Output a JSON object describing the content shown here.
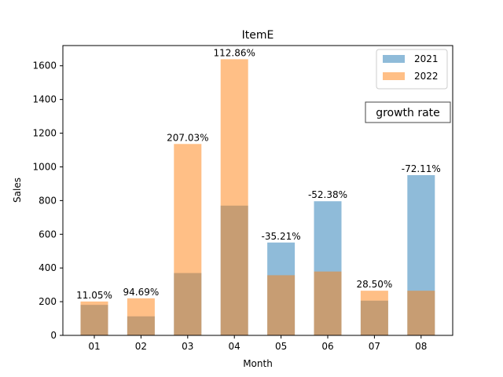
{
  "chart_data": {
    "type": "bar",
    "title": "ItemE",
    "xlabel": "Month",
    "ylabel": "Sales",
    "categories": [
      "01",
      "02",
      "03",
      "04",
      "05",
      "06",
      "07",
      "08"
    ],
    "series": [
      {
        "name": "2021",
        "color": "#1f77b4",
        "alpha": 0.5,
        "values": [
          181,
          113,
          370,
          770,
          551,
          796,
          206,
          951
        ]
      },
      {
        "name": "2022",
        "color": "#ff7f0e",
        "alpha": 0.5,
        "values": [
          201,
          220,
          1136,
          1639,
          357,
          379,
          265,
          265
        ]
      }
    ],
    "data_labels": [
      "11.05%",
      "94.69%",
      "207.03%",
      "112.86%",
      "-35.21%",
      "-52.38%",
      "28.50%",
      "-72.11%"
    ],
    "ylim": [
      0,
      1720
    ],
    "yticks": [
      0,
      200,
      400,
      600,
      800,
      1000,
      1200,
      1400,
      1600
    ],
    "grid": false,
    "legend_placement": "top-right",
    "annotation": "growth rate"
  }
}
